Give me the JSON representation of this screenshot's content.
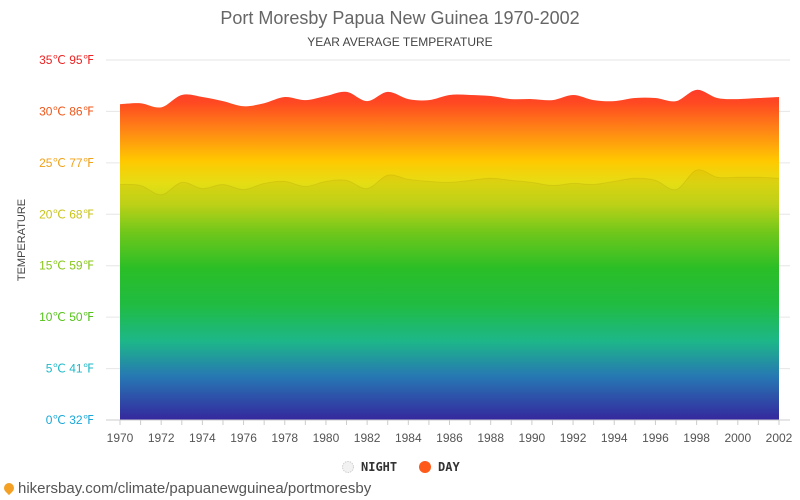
{
  "chart_data": {
    "type": "area",
    "title": "Port Moresby Papua New Guinea 1970-2002",
    "subtitle": "YEAR AVERAGE TEMPERATURE",
    "ylabel": "TEMPERATURE",
    "xlabel": "",
    "x": [
      1970,
      1971,
      1972,
      1973,
      1974,
      1975,
      1976,
      1977,
      1978,
      1979,
      1980,
      1981,
      1982,
      1983,
      1984,
      1985,
      1986,
      1987,
      1988,
      1989,
      1990,
      1991,
      1992,
      1993,
      1994,
      1995,
      1996,
      1997,
      1998,
      1999,
      2000,
      2001,
      2002
    ],
    "xticks": [
      "1970",
      "1972",
      "1974",
      "1976",
      "1978",
      "1980",
      "1982",
      "1984",
      "1986",
      "1988",
      "1990",
      "1992",
      "1994",
      "1996",
      "1998",
      "2000",
      "2002"
    ],
    "yticks": [
      {
        "label": "0℃ 32℉",
        "value": 0,
        "color": "#1aa7d8"
      },
      {
        "label": "5℃ 41℉",
        "value": 5,
        "color": "#1fb8c8"
      },
      {
        "label": "10℃ 50℉",
        "value": 10,
        "color": "#55c21a"
      },
      {
        "label": "15℃ 59℉",
        "value": 15,
        "color": "#88c61a"
      },
      {
        "label": "20℃ 68℉",
        "value": 20,
        "color": "#c8c41a"
      },
      {
        "label": "25℃ 77℉",
        "value": 25,
        "color": "#f0a21a"
      },
      {
        "label": "30℃ 86℉",
        "value": 30,
        "color": "#f0561a"
      },
      {
        "label": "35℃ 95℉",
        "value": 35,
        "color": "#ee2222"
      }
    ],
    "ylim": [
      0,
      35
    ],
    "xlim": [
      1970,
      2002
    ],
    "grid": true,
    "legend_position": "bottom-center",
    "series": [
      {
        "name": "NIGHT",
        "color": "#dddddd",
        "values": [
          22.9,
          22.8,
          21.9,
          23.1,
          22.5,
          22.9,
          22.4,
          23.0,
          23.2,
          22.7,
          23.2,
          23.3,
          22.5,
          23.8,
          23.4,
          23.2,
          23.1,
          23.3,
          23.5,
          23.3,
          23.1,
          22.8,
          23.0,
          22.9,
          23.2,
          23.5,
          23.3,
          22.4,
          24.3,
          23.6,
          23.6,
          23.6,
          23.5
        ]
      },
      {
        "name": "DAY",
        "color": "#ff5a1a",
        "values": [
          30.7,
          30.8,
          30.4,
          31.6,
          31.4,
          31.0,
          30.5,
          30.8,
          31.4,
          31.1,
          31.5,
          31.9,
          31.0,
          31.9,
          31.2,
          31.1,
          31.6,
          31.6,
          31.5,
          31.2,
          31.2,
          31.1,
          31.6,
          31.1,
          31.0,
          31.3,
          31.3,
          31.0,
          32.1,
          31.3,
          31.2,
          31.3,
          31.4
        ]
      }
    ]
  },
  "footer": {
    "url": "hikersbay.com/climate/papuanewguinea/portmoresby"
  }
}
